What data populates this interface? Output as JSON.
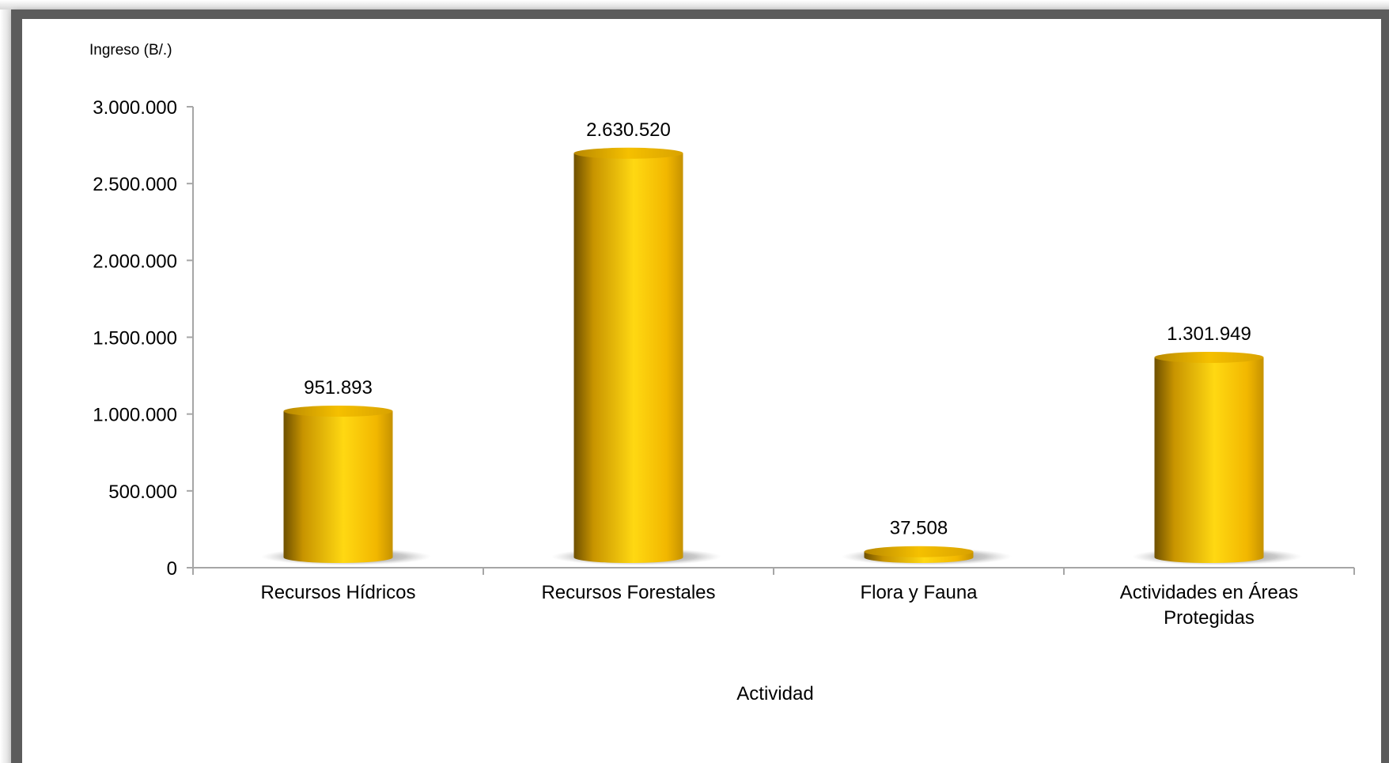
{
  "chart_data": {
    "type": "bar",
    "title": "",
    "ylabel": "Ingreso (B/.)",
    "xlabel": "Actividad",
    "categories": [
      [
        "Recursos Hídricos"
      ],
      [
        "Recursos Forestales"
      ],
      [
        "Flora y Fauna"
      ],
      [
        "Actividades en Áreas",
        "Protegidas"
      ]
    ],
    "values": [
      951893,
      2630520,
      37508,
      1301949
    ],
    "data_labels": [
      "951.893",
      "2.630.520",
      "37.508",
      "1.301.949"
    ],
    "ylim": [
      0,
      3000000
    ],
    "yticks": [
      0,
      500000,
      1000000,
      1500000,
      2000000,
      2500000,
      3000000
    ],
    "ytick_labels": [
      "0",
      "500.000",
      "1.000.000",
      "1.500.000",
      "2.000.000",
      "2.500.000",
      "3.000.000"
    ],
    "grid": false,
    "legend": "none",
    "bar_style": "3d-cylinder",
    "colors": {
      "bar_light": "#ffd700",
      "bar_mid": "#f5b800",
      "bar_dark": "#7a5a00",
      "axis": "#a6a6a6",
      "frame": "#5c5c5c"
    }
  }
}
